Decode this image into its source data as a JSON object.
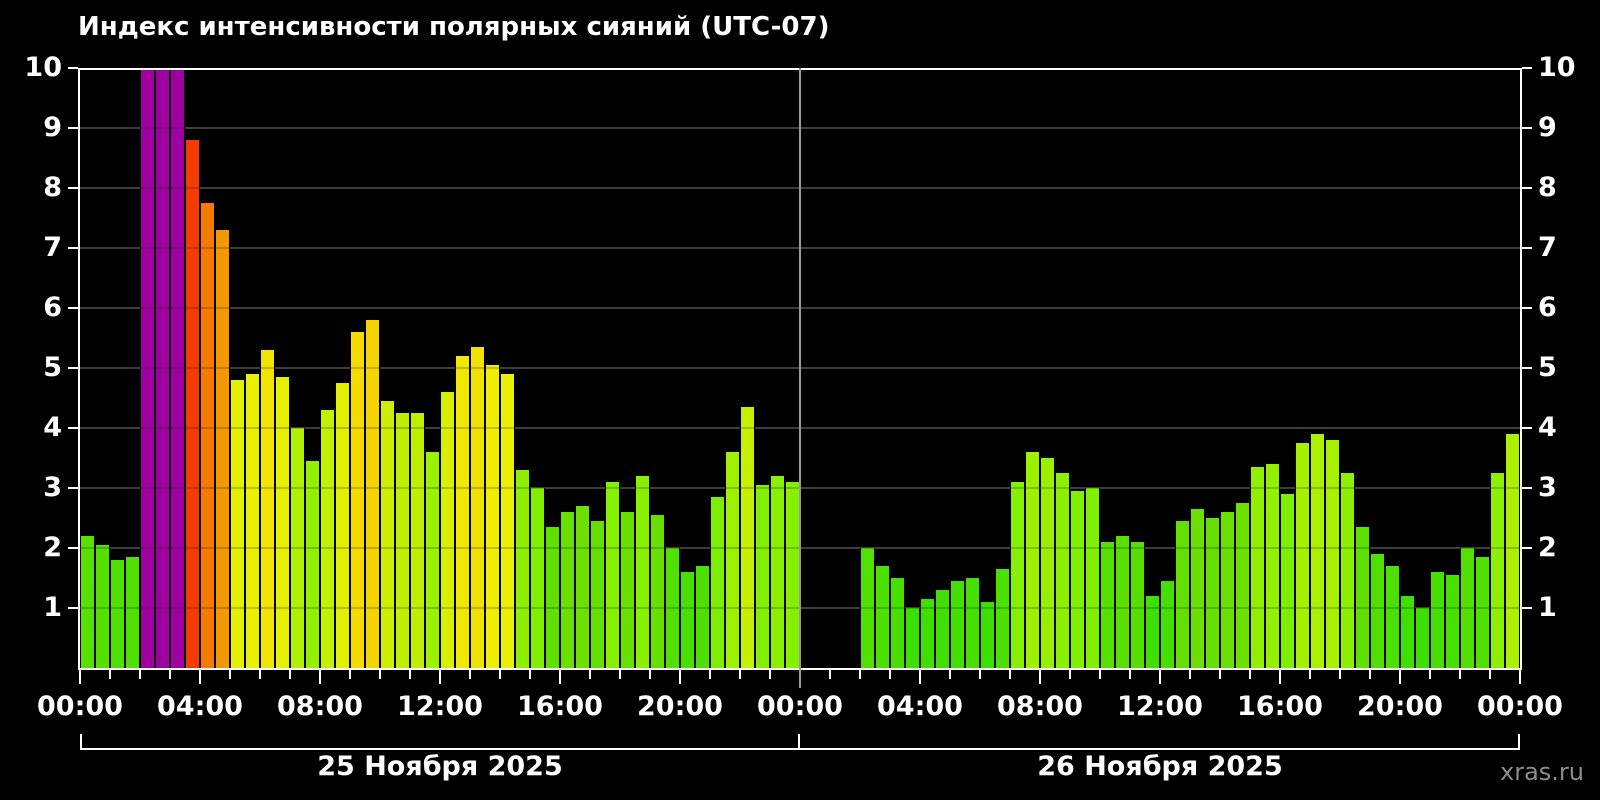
{
  "chart_data": {
    "type": "bar",
    "title": "Индекс интенсивности полярных сияний (UTC-07)",
    "watermark": "xras.ru",
    "ylabel": "",
    "xlabel": "",
    "ylim": [
      0,
      10
    ],
    "y_ticks": [
      1,
      2,
      3,
      4,
      5,
      6,
      7,
      8,
      9,
      10
    ],
    "x_tick_labels": [
      "00:00",
      "04:00",
      "08:00",
      "12:00",
      "16:00",
      "20:00",
      "00:00"
    ],
    "time_step_minutes": 30,
    "grid": "horizontal-only",
    "legend": "none",
    "series": [
      {
        "name": "25 Ноября 2025",
        "values": [
          2.2,
          2.05,
          1.8,
          1.85,
          10,
          10,
          10,
          8.8,
          7.75,
          7.3,
          4.8,
          4.9,
          5.3,
          4.85,
          4.0,
          3.45,
          4.3,
          4.75,
          5.6,
          5.8,
          4.45,
          4.25,
          4.25,
          3.6,
          4.6,
          5.2,
          5.35,
          5.05,
          4.9,
          3.3,
          3.0,
          2.35,
          2.6,
          2.7,
          2.45,
          3.1,
          2.6,
          3.2,
          2.55,
          2.0,
          1.6,
          1.7,
          2.85,
          3.6,
          4.35,
          3.05,
          3.2,
          3.1
        ]
      },
      {
        "name": "26 Ноября 2025",
        "values": [
          null,
          null,
          null,
          null,
          2.0,
          1.7,
          1.5,
          1.0,
          1.15,
          1.3,
          1.45,
          1.5,
          1.1,
          1.65,
          3.1,
          3.6,
          3.5,
          3.25,
          2.95,
          3.0,
          2.1,
          2.2,
          2.1,
          1.2,
          1.45,
          2.45,
          2.65,
          2.5,
          2.6,
          2.75,
          3.35,
          3.4,
          2.9,
          3.75,
          3.9,
          3.8,
          3.25,
          2.35,
          1.9,
          1.7,
          1.2,
          1.0,
          1.6,
          1.55,
          2.0,
          1.85,
          3.25,
          3.9
        ]
      }
    ],
    "colors": {
      "background": "#000000",
      "axis": "#ffffff",
      "panel_divider": "#9a9a9a",
      "gridline": "#4d4d4d",
      "text": "#ffffff",
      "watermark_text": "#8d8d8d",
      "bar_border": "#000000",
      "extreme_purple": "#a000a2",
      "scale_note": "green→yellow→orange→red by value; purple when value ≥ 9.5",
      "hue_stops": [
        [
          0.5,
          108
        ],
        [
          2,
          98
        ],
        [
          3,
          88
        ],
        [
          4,
          76
        ],
        [
          5,
          60
        ],
        [
          6,
          50
        ],
        [
          7,
          42
        ],
        [
          8,
          26
        ],
        [
          9,
          12
        ]
      ]
    }
  }
}
